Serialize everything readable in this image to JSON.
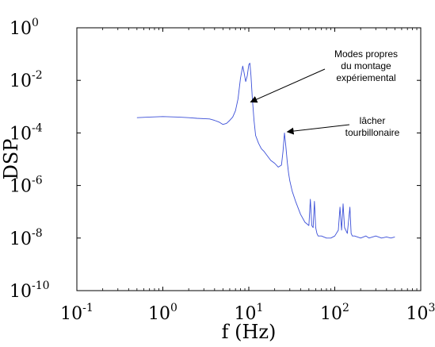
{
  "chart_data": {
    "type": "line",
    "xlabel": "f (Hz)",
    "ylabel": "DSP",
    "x_scale": "log",
    "y_scale": "log",
    "xlim": [
      0.1,
      1000
    ],
    "ylim": [
      1e-10,
      1
    ],
    "grid": false,
    "x_ticks": [
      {
        "base": "10",
        "exp": "-1"
      },
      {
        "base": "10",
        "exp": "0"
      },
      {
        "base": "10",
        "exp": "1"
      },
      {
        "base": "10",
        "exp": "2"
      },
      {
        "base": "10",
        "exp": "3"
      }
    ],
    "y_ticks": [
      {
        "base": "10",
        "exp": "0"
      },
      {
        "base": "10",
        "exp": "-2"
      },
      {
        "base": "10",
        "exp": "-4"
      },
      {
        "base": "10",
        "exp": "-6"
      },
      {
        "base": "10",
        "exp": "-8"
      },
      {
        "base": "10",
        "exp": "-10"
      }
    ],
    "series": [
      {
        "color": "#3b4fd8",
        "x": [
          0.5,
          0.7,
          1.0,
          1.5,
          2.0,
          2.5,
          3.0,
          3.5,
          4.0,
          4.5,
          5.0,
          5.5,
          6.0,
          6.5,
          7.0,
          7.5,
          8.0,
          8.5,
          8.8,
          9.2,
          9.6,
          10.0,
          10.3,
          10.6,
          11.0,
          11.5,
          12.0,
          13.0,
          14.0,
          15.0,
          16.0,
          18.0,
          20.0,
          22.0,
          24.0,
          25.0,
          26.0,
          27.0,
          28.0,
          29.0,
          30.0,
          32.0,
          35.0,
          40.0,
          45.0,
          50.0,
          52.0,
          54.0,
          56.0,
          58.0,
          60.0,
          62.0,
          64.0,
          70.0,
          80.0,
          90.0,
          100.0,
          110.0,
          115.0,
          120.0,
          125.0,
          130.0,
          140.0,
          150.0,
          155.0,
          160.0,
          170.0,
          200.0,
          230.0,
          250.0,
          300.0,
          350.0,
          400.0,
          450.0,
          500.0
        ],
        "y": [
          0.00038,
          0.0004,
          0.00042,
          0.0004,
          0.00038,
          0.00036,
          0.00035,
          0.00034,
          0.0003,
          0.00026,
          0.00021,
          0.00023,
          0.0003,
          0.0004,
          0.0007,
          0.002,
          0.012,
          0.035,
          0.02,
          0.009,
          0.015,
          0.04,
          0.045,
          0.015,
          0.002,
          0.0003,
          8e-05,
          4e-05,
          2.5e-05,
          2e-05,
          1.5e-05,
          9e-06,
          7e-06,
          5e-06,
          6e-06,
          2e-05,
          0.0001,
          3e-05,
          8e-06,
          3e-06,
          1.5e-06,
          6e-07,
          2.5e-07,
          8e-08,
          4e-08,
          3e-08,
          3e-07,
          3e-08,
          2.5e-08,
          2.5e-07,
          2.5e-08,
          1.5e-08,
          1.2e-08,
          1.2e-08,
          1e-08,
          1e-08,
          1.2e-08,
          2e-08,
          1.5e-07,
          2e-08,
          2e-07,
          2.5e-08,
          1.5e-08,
          1.5e-07,
          1.5e-08,
          1.2e-08,
          1.2e-08,
          1e-08,
          1.2e-08,
          1e-08,
          1.2e-08,
          1e-08,
          1.1e-08,
          1e-08,
          1.1e-08
        ]
      }
    ],
    "annotations": [
      {
        "lines": [
          "Modes propres",
          "du montage",
          "expériemental"
        ],
        "target_x": 10.5,
        "target_y": 0.0015
      },
      {
        "lines": [
          "lâcher",
          "tourbillonaire"
        ],
        "target_x": 28.0,
        "target_y": 0.00011
      }
    ]
  }
}
